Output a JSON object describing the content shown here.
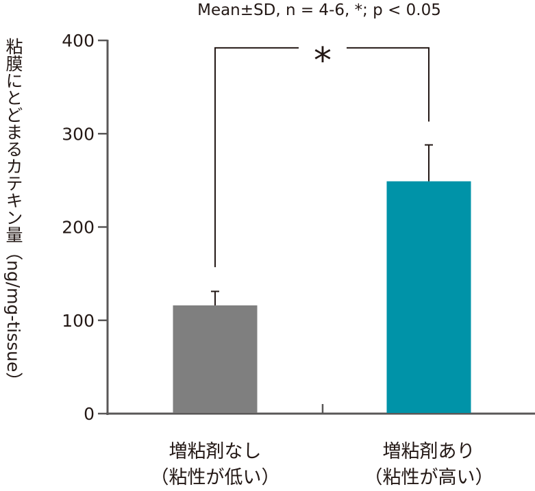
{
  "chart_data": {
    "type": "bar",
    "title": "Mean±SD, n = 4-6, *; p < 0.05",
    "ylabel": "粘膜にとどまるカテキン量（ng/mg-tissue）",
    "xlabel": "",
    "categories": [
      {
        "line1": "増粘剤なし",
        "line2": "（粘性が低い）"
      },
      {
        "line1": "増粘剤あり",
        "line2": "（粘性が高い）"
      }
    ],
    "values": [
      116,
      249
    ],
    "errors": [
      15,
      39
    ],
    "colors": [
      "#7f7f7f",
      "#0093a8"
    ],
    "ylim": [
      0,
      400
    ],
    "yticks": [
      "0",
      "100",
      "200",
      "300",
      "400"
    ],
    "grid": false,
    "annotation": {
      "text": "*",
      "between": [
        0,
        1
      ],
      "meaning": "p < 0.05"
    }
  }
}
